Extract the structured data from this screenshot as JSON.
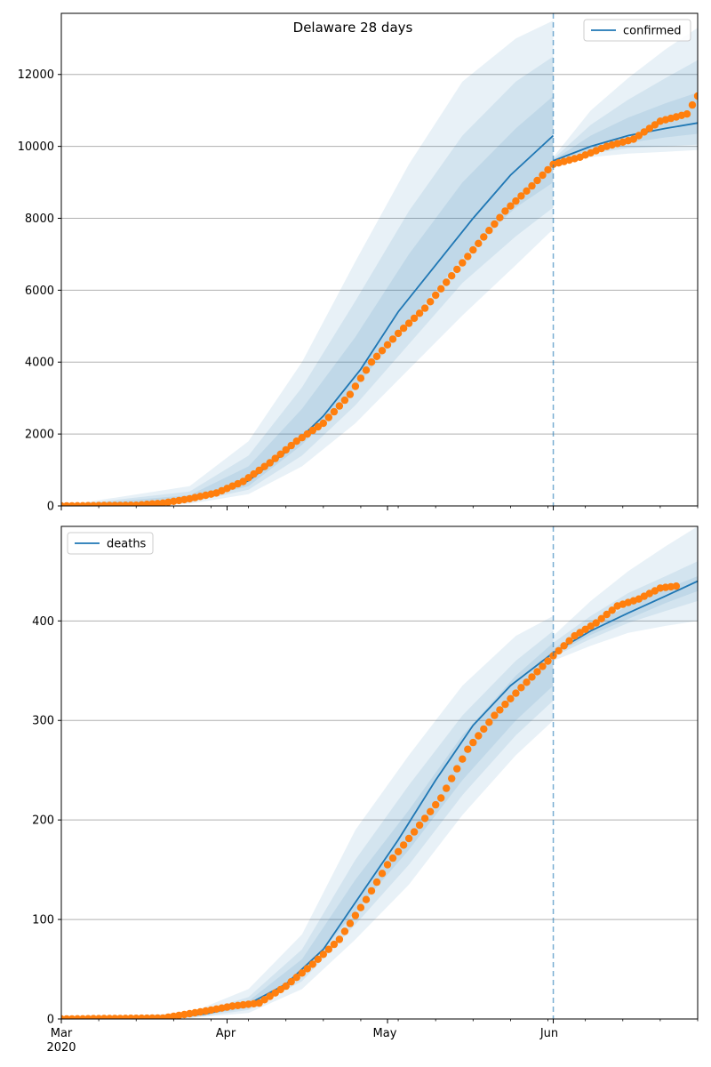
{
  "figure_title": "Delaware 28 days",
  "x_axis": {
    "month_ticks": [
      "Mar",
      "Apr",
      "May",
      "Jun"
    ],
    "year_label": "2020",
    "start_date": "2020-03-01",
    "end_date": "2020-06-28",
    "forecast_date": "2020-06-01"
  },
  "colors": {
    "model": "#1f77b4",
    "observed": "#ff7f0e",
    "band": "#1f77b4",
    "grid": "#b0b0b0"
  },
  "chart_data": [
    {
      "type": "line",
      "legend": "confirmed",
      "legend_position": "top-right",
      "ylim": [
        0,
        13700
      ],
      "yticks": [
        0,
        2000,
        4000,
        6000,
        8000,
        10000,
        12000
      ],
      "grid": "horizontal",
      "model_line": [
        [
          "2020-03-01",
          0
        ],
        [
          "2020-03-20",
          30
        ],
        [
          "2020-03-28",
          250
        ],
        [
          "2020-04-05",
          700
        ],
        [
          "2020-04-12",
          1500
        ],
        [
          "2020-04-19",
          2500
        ],
        [
          "2020-04-26",
          3800
        ],
        [
          "2020-05-03",
          5400
        ],
        [
          "2020-05-10",
          6700
        ],
        [
          "2020-05-17",
          8000
        ],
        [
          "2020-05-24",
          9200
        ],
        [
          "2020-06-01",
          10300
        ]
      ],
      "forecast_line": [
        [
          "2020-06-01",
          9600
        ],
        [
          "2020-06-08",
          10000
        ],
        [
          "2020-06-15",
          10300
        ],
        [
          "2020-06-22",
          10500
        ],
        [
          "2020-06-28",
          10650
        ]
      ],
      "observed": [
        [
          "2020-03-01",
          0
        ],
        [
          "2020-03-15",
          20
        ],
        [
          "2020-03-20",
          80
        ],
        [
          "2020-03-25",
          200
        ],
        [
          "2020-03-30",
          360
        ],
        [
          "2020-04-04",
          680
        ],
        [
          "2020-04-09",
          1200
        ],
        [
          "2020-04-14",
          1800
        ],
        [
          "2020-04-19",
          2300
        ],
        [
          "2020-04-24",
          3100
        ],
        [
          "2020-04-28",
          4000
        ],
        [
          "2020-05-03",
          4800
        ],
        [
          "2020-05-08",
          5500
        ],
        [
          "2020-05-13",
          6400
        ],
        [
          "2020-05-18",
          7300
        ],
        [
          "2020-05-23",
          8200
        ],
        [
          "2020-05-28",
          8900
        ],
        [
          "2020-06-01",
          9500
        ],
        [
          "2020-06-06",
          9700
        ],
        [
          "2020-06-11",
          10000
        ],
        [
          "2020-06-16",
          10200
        ],
        [
          "2020-06-21",
          10700
        ],
        [
          "2020-06-26",
          10900
        ],
        [
          "2020-06-28",
          11400
        ]
      ],
      "bands_model": [
        {
          "upper": [
            [
              "2020-03-01",
              0
            ],
            [
              "2020-03-25",
              550
            ],
            [
              "2020-04-05",
              1800
            ],
            [
              "2020-04-15",
              4000
            ],
            [
              "2020-04-25",
              6800
            ],
            [
              "2020-05-05",
              9500
            ],
            [
              "2020-05-15",
              11800
            ],
            [
              "2020-05-25",
              13000
            ],
            [
              "2020-06-01",
              13500
            ]
          ],
          "lower": [
            [
              "2020-03-01",
              0
            ],
            [
              "2020-03-25",
              60
            ],
            [
              "2020-04-05",
              330
            ],
            [
              "2020-04-15",
              1100
            ],
            [
              "2020-04-25",
              2300
            ],
            [
              "2020-05-05",
              3800
            ],
            [
              "2020-05-15",
              5300
            ],
            [
              "2020-05-25",
              6700
            ],
            [
              "2020-06-01",
              7700
            ]
          ]
        },
        {
          "upper": [
            [
              "2020-03-01",
              0
            ],
            [
              "2020-03-25",
              400
            ],
            [
              "2020-04-05",
              1400
            ],
            [
              "2020-04-15",
              3300
            ],
            [
              "2020-04-25",
              5700
            ],
            [
              "2020-05-05",
              8200
            ],
            [
              "2020-05-15",
              10300
            ],
            [
              "2020-05-25",
              11800
            ],
            [
              "2020-06-01",
              12500
            ]
          ],
          "lower": [
            [
              "2020-03-01",
              0
            ],
            [
              "2020-03-25",
              100
            ],
            [
              "2020-04-05",
              450
            ],
            [
              "2020-04-15",
              1400
            ],
            [
              "2020-04-25",
              2800
            ],
            [
              "2020-05-05",
              4500
            ],
            [
              "2020-05-15",
              6200
            ],
            [
              "2020-05-25",
              7500
            ],
            [
              "2020-06-01",
              8300
            ]
          ]
        },
        {
          "upper": [
            [
              "2020-03-01",
              0
            ],
            [
              "2020-03-25",
              300
            ],
            [
              "2020-04-05",
              1100
            ],
            [
              "2020-04-15",
              2700
            ],
            [
              "2020-04-25",
              4700
            ],
            [
              "2020-05-05",
              7000
            ],
            [
              "2020-05-15",
              9000
            ],
            [
              "2020-05-25",
              10500
            ],
            [
              "2020-06-01",
              11400
            ]
          ],
          "lower": [
            [
              "2020-03-01",
              0
            ],
            [
              "2020-03-25",
              140
            ],
            [
              "2020-04-05",
              550
            ],
            [
              "2020-04-15",
              1700
            ],
            [
              "2020-04-25",
              3300
            ],
            [
              "2020-05-05",
              5100
            ],
            [
              "2020-05-15",
              6900
            ],
            [
              "2020-05-25",
              8300
            ],
            [
              "2020-06-01",
              9000
            ]
          ]
        }
      ],
      "bands_forecast": [
        {
          "upper": [
            [
              "2020-06-01",
              9700
            ],
            [
              "2020-06-08",
              11000
            ],
            [
              "2020-06-15",
              11900
            ],
            [
              "2020-06-22",
              12700
            ],
            [
              "2020-06-28",
              13300
            ]
          ],
          "lower": [
            [
              "2020-06-01",
              9550
            ],
            [
              "2020-06-08",
              9700
            ],
            [
              "2020-06-15",
              9800
            ],
            [
              "2020-06-22",
              9850
            ],
            [
              "2020-06-28",
              9900
            ]
          ]
        },
        {
          "upper": [
            [
              "2020-06-01",
              9650
            ],
            [
              "2020-06-08",
              10600
            ],
            [
              "2020-06-15",
              11300
            ],
            [
              "2020-06-22",
              11900
            ],
            [
              "2020-06-28",
              12400
            ]
          ],
          "lower": [
            [
              "2020-06-01",
              9570
            ],
            [
              "2020-06-08",
              9800
            ],
            [
              "2020-06-15",
              9950
            ],
            [
              "2020-06-22",
              10000
            ],
            [
              "2020-06-28",
              10050
            ]
          ]
        },
        {
          "upper": [
            [
              "2020-06-01",
              9620
            ],
            [
              "2020-06-08",
              10300
            ],
            [
              "2020-06-15",
              10800
            ],
            [
              "2020-06-22",
              11200
            ],
            [
              "2020-06-28",
              11500
            ]
          ],
          "lower": [
            [
              "2020-06-01",
              9590
            ],
            [
              "2020-06-08",
              9900
            ],
            [
              "2020-06-15",
              10100
            ],
            [
              "2020-06-22",
              10250
            ],
            [
              "2020-06-28",
              10350
            ]
          ]
        }
      ]
    },
    {
      "type": "line",
      "legend": "deaths",
      "legend_position": "top-left",
      "ylim": [
        0,
        495
      ],
      "yticks": [
        0,
        100,
        200,
        300,
        400
      ],
      "grid": "horizontal",
      "model_line": [
        [
          "2020-03-01",
          0
        ],
        [
          "2020-03-20",
          1
        ],
        [
          "2020-03-28",
          5
        ],
        [
          "2020-04-05",
          15
        ],
        [
          "2020-04-12",
          35
        ],
        [
          "2020-04-19",
          70
        ],
        [
          "2020-04-26",
          125
        ],
        [
          "2020-05-03",
          180
        ],
        [
          "2020-05-10",
          240
        ],
        [
          "2020-05-17",
          295
        ],
        [
          "2020-05-24",
          335
        ],
        [
          "2020-06-01",
          368
        ]
      ],
      "forecast_line": [
        [
          "2020-06-01",
          368
        ],
        [
          "2020-06-08",
          390
        ],
        [
          "2020-06-15",
          408
        ],
        [
          "2020-06-22",
          425
        ],
        [
          "2020-06-28",
          440
        ]
      ],
      "observed": [
        [
          "2020-03-01",
          0
        ],
        [
          "2020-03-20",
          1
        ],
        [
          "2020-03-28",
          8
        ],
        [
          "2020-04-02",
          13
        ],
        [
          "2020-04-07",
          16
        ],
        [
          "2020-04-12",
          33
        ],
        [
          "2020-04-17",
          55
        ],
        [
          "2020-04-22",
          80
        ],
        [
          "2020-04-27",
          120
        ],
        [
          "2020-05-01",
          155
        ],
        [
          "2020-05-06",
          188
        ],
        [
          "2020-05-11",
          222
        ],
        [
          "2020-05-16",
          271
        ],
        [
          "2020-05-21",
          305
        ],
        [
          "2020-05-26",
          333
        ],
        [
          "2020-06-01",
          365
        ],
        [
          "2020-06-05",
          385
        ],
        [
          "2020-06-09",
          398
        ],
        [
          "2020-06-13",
          415
        ],
        [
          "2020-06-17",
          422
        ],
        [
          "2020-06-21",
          433
        ],
        [
          "2020-06-24",
          435
        ]
      ],
      "bands_model": [
        {
          "upper": [
            [
              "2020-03-01",
              0
            ],
            [
              "2020-03-25",
              6
            ],
            [
              "2020-04-05",
              30
            ],
            [
              "2020-04-15",
              85
            ],
            [
              "2020-04-25",
              190
            ],
            [
              "2020-05-05",
              265
            ],
            [
              "2020-05-15",
              335
            ],
            [
              "2020-05-25",
              385
            ],
            [
              "2020-06-01",
              405
            ]
          ],
          "lower": [
            [
              "2020-03-01",
              0
            ],
            [
              "2020-03-25",
              1
            ],
            [
              "2020-04-05",
              6
            ],
            [
              "2020-04-15",
              30
            ],
            [
              "2020-04-25",
              80
            ],
            [
              "2020-05-05",
              135
            ],
            [
              "2020-05-15",
              205
            ],
            [
              "2020-05-25",
              265
            ],
            [
              "2020-06-01",
              300
            ]
          ]
        },
        {
          "upper": [
            [
              "2020-03-01",
              0
            ],
            [
              "2020-03-25",
              4
            ],
            [
              "2020-04-05",
              22
            ],
            [
              "2020-04-15",
              70
            ],
            [
              "2020-04-25",
              160
            ],
            [
              "2020-05-05",
              235
            ],
            [
              "2020-05-15",
              305
            ],
            [
              "2020-05-25",
              360
            ],
            [
              "2020-06-01",
              390
            ]
          ],
          "lower": [
            [
              "2020-03-01",
              0
            ],
            [
              "2020-03-25",
              1
            ],
            [
              "2020-04-05",
              9
            ],
            [
              "2020-04-15",
              38
            ],
            [
              "2020-04-25",
              95
            ],
            [
              "2020-05-05",
              155
            ],
            [
              "2020-05-15",
              225
            ],
            [
              "2020-05-25",
              285
            ],
            [
              "2020-06-01",
              320
            ]
          ]
        },
        {
          "upper": [
            [
              "2020-03-01",
              0
            ],
            [
              "2020-03-25",
              3
            ],
            [
              "2020-04-05",
              18
            ],
            [
              "2020-04-15",
              60
            ],
            [
              "2020-04-25",
              140
            ],
            [
              "2020-05-05",
              210
            ],
            [
              "2020-05-15",
              285
            ],
            [
              "2020-05-25",
              345
            ],
            [
              "2020-06-01",
              378
            ]
          ],
          "lower": [
            [
              "2020-03-01",
              0
            ],
            [
              "2020-03-25",
              2
            ],
            [
              "2020-04-05",
              11
            ],
            [
              "2020-04-15",
              45
            ],
            [
              "2020-04-25",
              108
            ],
            [
              "2020-05-05",
              170
            ],
            [
              "2020-05-15",
              240
            ],
            [
              "2020-05-25",
              300
            ],
            [
              "2020-06-01",
              335
            ]
          ]
        }
      ],
      "bands_forecast": [
        {
          "upper": [
            [
              "2020-06-01",
              385
            ],
            [
              "2020-06-08",
              420
            ],
            [
              "2020-06-15",
              450
            ],
            [
              "2020-06-22",
              475
            ],
            [
              "2020-06-28",
              495
            ]
          ],
          "lower": [
            [
              "2020-06-01",
              360
            ],
            [
              "2020-06-08",
              375
            ],
            [
              "2020-06-15",
              388
            ],
            [
              "2020-06-22",
              395
            ],
            [
              "2020-06-28",
              400
            ]
          ]
        },
        {
          "upper": [
            [
              "2020-06-01",
              378
            ],
            [
              "2020-06-08",
              405
            ],
            [
              "2020-06-15",
              428
            ],
            [
              "2020-06-22",
              445
            ],
            [
              "2020-06-28",
              460
            ]
          ],
          "lower": [
            [
              "2020-06-01",
              364
            ],
            [
              "2020-06-08",
              382
            ],
            [
              "2020-06-15",
              398
            ],
            [
              "2020-06-22",
              410
            ],
            [
              "2020-06-28",
              420
            ]
          ]
        },
        {
          "upper": [
            [
              "2020-06-01",
              372
            ],
            [
              "2020-06-08",
              396
            ],
            [
              "2020-06-15",
              415
            ],
            [
              "2020-06-22",
              432
            ],
            [
              "2020-06-28",
              445
            ]
          ],
          "lower": [
            [
              "2020-06-01",
              366
            ],
            [
              "2020-06-08",
              386
            ],
            [
              "2020-06-15",
              402
            ],
            [
              "2020-06-22",
              418
            ],
            [
              "2020-06-28",
              430
            ]
          ]
        }
      ]
    }
  ]
}
